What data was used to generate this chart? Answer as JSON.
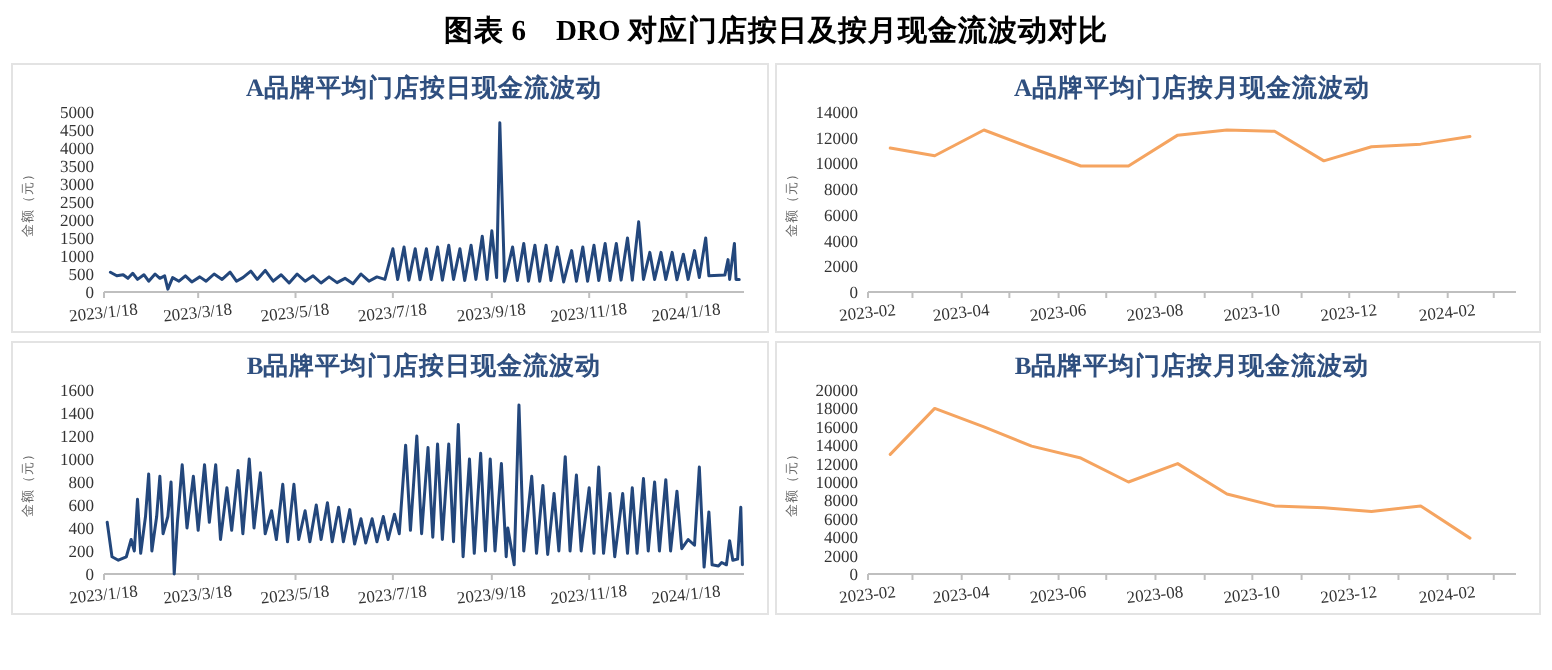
{
  "chart_data": [
    {
      "type": "line",
      "title": "A品牌平均门店按日现金流波动",
      "ylabel": "金额（元）",
      "annotations": [
        "图表 6　DRO 对应门店按日及按月现金流波动对比"
      ],
      "xlim": [
        "2023-01-18",
        "2024-02-23"
      ],
      "ylim": [
        0,
        5000
      ],
      "yticks": [
        0,
        500,
        1000,
        1500,
        2000,
        2500,
        3000,
        3500,
        4000,
        4500,
        5000
      ],
      "xticks": [
        {
          "value": "2023-01-18",
          "label": "2023/1/18"
        },
        {
          "value": "2023-03-18",
          "label": "2023/3/18"
        },
        {
          "value": "2023-05-18",
          "label": "2023/5/18"
        },
        {
          "value": "2023-07-18",
          "label": "2023/7/18"
        },
        {
          "value": "2023-09-18",
          "label": "2023/9/18"
        },
        {
          "value": "2023-11-18",
          "label": "2023/11/18"
        },
        {
          "value": "2024-01-18",
          "label": "2024/1/18"
        }
      ],
      "x": [
        "2023-01-22",
        "2023-01-26",
        "2023-01-30",
        "2023-02-02",
        "2023-02-05",
        "2023-02-08",
        "2023-02-12",
        "2023-02-15",
        "2023-02-19",
        "2023-02-22",
        "2023-02-25",
        "2023-02-27",
        "2023-03-02",
        "2023-03-06",
        "2023-03-10",
        "2023-03-14",
        "2023-03-19",
        "2023-03-23",
        "2023-03-28",
        "2023-04-02",
        "2023-04-07",
        "2023-04-11",
        "2023-04-15",
        "2023-04-20",
        "2023-04-24",
        "2023-04-29",
        "2023-05-04",
        "2023-05-09",
        "2023-05-14",
        "2023-05-19",
        "2023-05-24",
        "2023-05-29",
        "2023-06-03",
        "2023-06-08",
        "2023-06-13",
        "2023-06-18",
        "2023-06-23",
        "2023-06-28",
        "2023-07-03",
        "2023-07-08",
        "2023-07-13",
        "2023-07-18",
        "2023-07-21",
        "2023-07-25",
        "2023-07-28",
        "2023-08-01",
        "2023-08-04",
        "2023-08-08",
        "2023-08-11",
        "2023-08-15",
        "2023-08-18",
        "2023-08-22",
        "2023-08-25",
        "2023-08-29",
        "2023-09-01",
        "2023-09-05",
        "2023-09-08",
        "2023-09-12",
        "2023-09-15",
        "2023-09-18",
        "2023-09-21",
        "2023-09-23",
        "2023-09-26",
        "2023-10-01",
        "2023-10-04",
        "2023-10-08",
        "2023-10-11",
        "2023-10-15",
        "2023-10-18",
        "2023-10-22",
        "2023-10-25",
        "2023-10-29",
        "2023-11-02",
        "2023-11-07",
        "2023-11-10",
        "2023-11-14",
        "2023-11-17",
        "2023-11-21",
        "2023-11-24",
        "2023-11-28",
        "2023-12-01",
        "2023-12-05",
        "2023-12-08",
        "2023-12-12",
        "2023-12-15",
        "2023-12-19",
        "2023-12-22",
        "2023-12-26",
        "2023-12-29",
        "2024-01-02",
        "2024-01-05",
        "2024-01-09",
        "2024-01-12",
        "2024-01-16",
        "2024-01-19",
        "2024-01-23",
        "2024-01-26",
        "2024-01-30",
        "2024-02-01",
        "2024-02-11",
        "2024-02-13",
        "2024-02-14",
        "2024-02-17",
        "2024-02-18",
        "2024-02-20"
      ],
      "series": [
        {
          "color": "#23477c",
          "values": [
            550,
            450,
            480,
            380,
            520,
            350,
            480,
            300,
            500,
            380,
            450,
            80,
            400,
            300,
            450,
            280,
            420,
            300,
            500,
            350,
            550,
            300,
            400,
            580,
            350,
            600,
            300,
            480,
            250,
            500,
            300,
            450,
            250,
            420,
            260,
            380,
            230,
            500,
            300,
            420,
            350,
            1200,
            350,
            1250,
            330,
            1200,
            340,
            1200,
            350,
            1250,
            330,
            1300,
            350,
            1200,
            320,
            1300,
            350,
            1550,
            350,
            1700,
            400,
            4700,
            300,
            1250,
            320,
            1350,
            300,
            1300,
            300,
            1300,
            320,
            1250,
            280,
            1150,
            300,
            1250,
            300,
            1300,
            320,
            1350,
            320,
            1350,
            330,
            1500,
            330,
            1950,
            350,
            1100,
            350,
            1100,
            350,
            1100,
            340,
            1050,
            350,
            1150,
            400,
            1500,
            450,
            470,
            900,
            350,
            1350,
            350,
            350
          ]
        }
      ]
    },
    {
      "type": "line",
      "title": "A品牌平均门店按月现金流波动",
      "ylabel": "金额（元）",
      "xlim": [
        "2023-02",
        "2024-03-15"
      ],
      "ylim": [
        0,
        14000
      ],
      "yticks": [
        0,
        2000,
        4000,
        6000,
        8000,
        10000,
        12000,
        14000
      ],
      "xticks": [
        "2023-02",
        {
          "value": "2023-03",
          "label": null
        },
        "2023-04",
        {
          "value": "2023-05",
          "label": null
        },
        "2023-06",
        {
          "value": "2023-07",
          "label": null
        },
        "2023-08",
        {
          "value": "2023-09",
          "label": null
        },
        "2023-10",
        {
          "value": "2023-11",
          "label": null
        },
        "2023-12",
        {
          "value": "2024-01",
          "label": null
        },
        "2024-02",
        {
          "value": "2024-03",
          "label": null
        }
      ],
      "x": [
        "2023-02-15",
        "2023-03-15",
        "2023-04-15",
        "2023-05-15",
        "2023-06-15",
        "2023-07-15",
        "2023-08-15",
        "2023-09-15",
        "2023-10-15",
        "2023-11-15",
        "2023-12-15",
        "2024-01-15",
        "2024-02-15"
      ],
      "series": [
        {
          "color": "#f5a460",
          "values": [
            11200,
            10600,
            12600,
            11200,
            9800,
            9800,
            12200,
            12600,
            12500,
            10200,
            11300,
            11500,
            12100
          ]
        }
      ]
    },
    {
      "type": "line",
      "title": "B品牌平均门店按日现金流波动",
      "ylabel": "金额（元）",
      "xlim": [
        "2023-01-18",
        "2024-02-23"
      ],
      "ylim": [
        0,
        1600
      ],
      "yticks": [
        0,
        200,
        400,
        600,
        800,
        1000,
        1200,
        1400,
        1600
      ],
      "xticks": [
        {
          "value": "2023-01-18",
          "label": "2023/1/18"
        },
        {
          "value": "2023-03-18",
          "label": "2023/3/18"
        },
        {
          "value": "2023-05-18",
          "label": "2023/5/18"
        },
        {
          "value": "2023-07-18",
          "label": "2023/7/18"
        },
        {
          "value": "2023-09-18",
          "label": "2023/9/18"
        },
        {
          "value": "2023-11-18",
          "label": "2023/11/18"
        },
        {
          "value": "2024-01-18",
          "label": "2024/1/18"
        }
      ],
      "x": [
        "2023-01-20",
        "2023-01-23",
        "2023-01-27",
        "2023-02-01",
        "2023-02-04",
        "2023-02-06",
        "2023-02-08",
        "2023-02-10",
        "2023-02-13",
        "2023-02-15",
        "2023-02-17",
        "2023-02-20",
        "2023-02-22",
        "2023-02-24",
        "2023-02-27",
        "2023-03-01",
        "2023-03-03",
        "2023-03-05",
        "2023-03-08",
        "2023-03-11",
        "2023-03-15",
        "2023-03-18",
        "2023-03-22",
        "2023-03-25",
        "2023-03-29",
        "2023-04-01",
        "2023-04-05",
        "2023-04-08",
        "2023-04-12",
        "2023-04-15",
        "2023-04-19",
        "2023-04-22",
        "2023-04-26",
        "2023-04-29",
        "2023-05-03",
        "2023-05-06",
        "2023-05-10",
        "2023-05-13",
        "2023-05-17",
        "2023-05-20",
        "2023-05-24",
        "2023-05-27",
        "2023-05-31",
        "2023-06-03",
        "2023-06-07",
        "2023-06-10",
        "2023-06-14",
        "2023-06-17",
        "2023-06-21",
        "2023-06-24",
        "2023-06-28",
        "2023-07-01",
        "2023-07-05",
        "2023-07-08",
        "2023-07-12",
        "2023-07-15",
        "2023-07-19",
        "2023-07-22",
        "2023-07-26",
        "2023-07-29",
        "2023-08-02",
        "2023-08-05",
        "2023-08-09",
        "2023-08-12",
        "2023-08-15",
        "2023-08-18",
        "2023-08-22",
        "2023-08-25",
        "2023-08-28",
        "2023-08-31",
        "2023-09-04",
        "2023-09-07",
        "2023-09-11",
        "2023-09-14",
        "2023-09-17",
        "2023-09-20",
        "2023-09-24",
        "2023-09-27",
        "2023-09-28",
        "2023-10-02",
        "2023-10-05",
        "2023-10-08",
        "2023-10-13",
        "2023-10-16",
        "2023-10-20",
        "2023-10-23",
        "2023-10-27",
        "2023-10-30",
        "2023-11-03",
        "2023-11-06",
        "2023-11-10",
        "2023-11-13",
        "2023-11-18",
        "2023-11-21",
        "2023-11-24",
        "2023-11-27",
        "2023-12-01",
        "2023-12-04",
        "2023-12-09",
        "2023-12-12",
        "2023-12-15",
        "2023-12-18",
        "2023-12-22",
        "2023-12-25",
        "2023-12-29",
        "2024-01-01",
        "2024-01-05",
        "2024-01-08",
        "2024-01-12",
        "2024-01-15",
        "2024-01-19",
        "2024-01-23",
        "2024-01-26",
        "2024-01-29",
        "2024-02-01",
        "2024-02-03",
        "2024-02-07",
        "2024-02-09",
        "2024-02-12",
        "2024-02-14",
        "2024-02-16",
        "2024-02-19",
        "2024-02-21",
        "2024-02-22"
      ],
      "series": [
        {
          "color": "#23477c",
          "values": [
            450,
            150,
            120,
            150,
            300,
            200,
            650,
            180,
            500,
            870,
            200,
            500,
            850,
            350,
            500,
            800,
            0,
            450,
            950,
            400,
            850,
            380,
            950,
            450,
            950,
            300,
            750,
            380,
            900,
            350,
            1000,
            400,
            880,
            350,
            550,
            300,
            780,
            280,
            780,
            300,
            550,
            280,
            600,
            300,
            620,
            280,
            580,
            280,
            560,
            260,
            480,
            270,
            480,
            280,
            500,
            300,
            520,
            350,
            1120,
            380,
            1200,
            350,
            1100,
            320,
            1130,
            300,
            1130,
            280,
            1300,
            150,
            1000,
            180,
            1050,
            200,
            1000,
            200,
            960,
            150,
            400,
            80,
            1470,
            200,
            850,
            180,
            770,
            170,
            700,
            200,
            1020,
            200,
            860,
            200,
            750,
            180,
            930,
            180,
            700,
            150,
            700,
            180,
            750,
            180,
            830,
            200,
            800,
            200,
            820,
            200,
            720,
            220,
            300,
            250,
            930,
            60,
            540,
            80,
            70,
            100,
            80,
            290,
            120,
            130,
            580,
            80
          ]
        }
      ]
    },
    {
      "type": "line",
      "title": "B品牌平均门店按月现金流波动",
      "ylabel": "金额（元）",
      "xlim": [
        "2023-02",
        "2024-03-15"
      ],
      "ylim": [
        0,
        20000
      ],
      "yticks": [
        0,
        2000,
        4000,
        6000,
        8000,
        10000,
        12000,
        14000,
        16000,
        18000,
        20000
      ],
      "xticks": [
        "2023-02",
        {
          "value": "2023-03",
          "label": null
        },
        "2023-04",
        {
          "value": "2023-05",
          "label": null
        },
        "2023-06",
        {
          "value": "2023-07",
          "label": null
        },
        "2023-08",
        {
          "value": "2023-09",
          "label": null
        },
        "2023-10",
        {
          "value": "2023-11",
          "label": null
        },
        "2023-12",
        {
          "value": "2024-01",
          "label": null
        },
        "2024-02",
        {
          "value": "2024-03",
          "label": null
        }
      ],
      "x": [
        "2023-02-15",
        "2023-03-15",
        "2023-04-15",
        "2023-05-15",
        "2023-06-15",
        "2023-07-15",
        "2023-08-15",
        "2023-09-15",
        "2023-10-15",
        "2023-11-15",
        "2023-12-15",
        "2024-01-15",
        "2024-02-15"
      ],
      "series": [
        {
          "color": "#f5a460",
          "values": [
            13000,
            18000,
            16000,
            13900,
            12600,
            10000,
            12000,
            8700,
            7400,
            7200,
            6800,
            7400,
            3900
          ]
        }
      ]
    }
  ]
}
